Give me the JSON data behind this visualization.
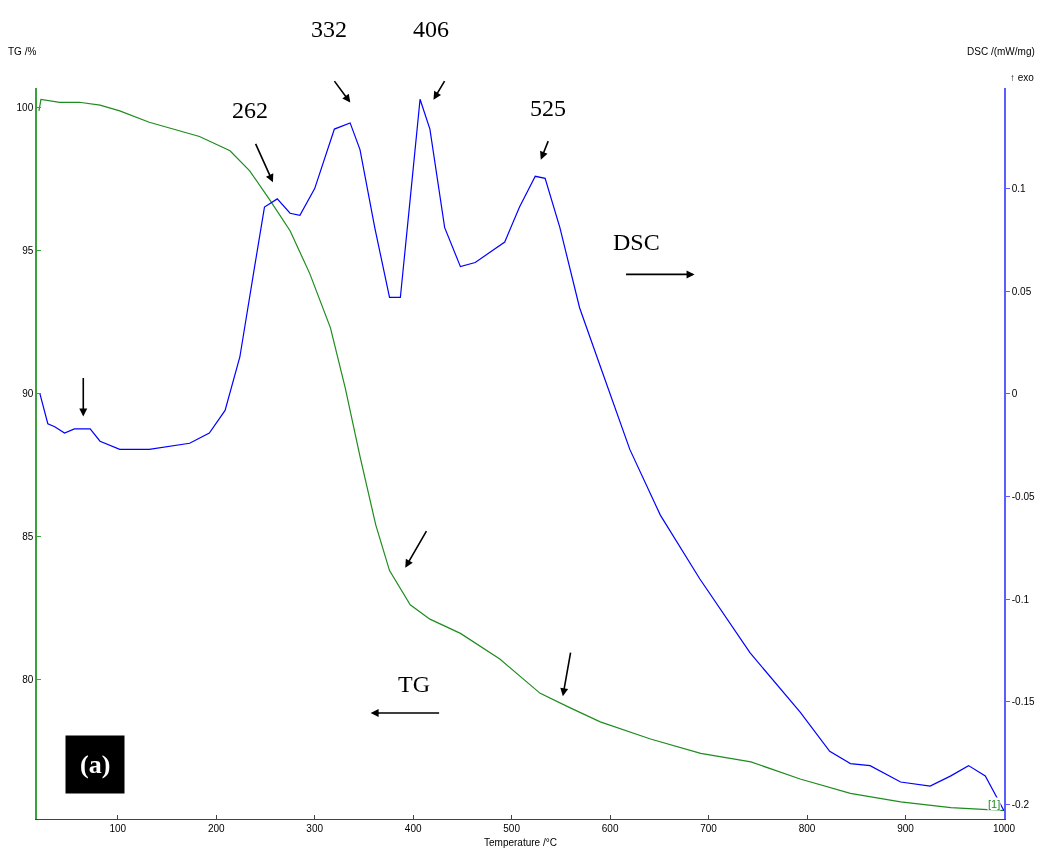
{
  "chart_data": {
    "type": "line",
    "xlabel": "Temperature /°C",
    "ylabel": "TG /%",
    "y2label": "DSC /(mW/mg)",
    "xlim": [
      18,
      1000
    ],
    "xticks": [
      100,
      200,
      300,
      400,
      500,
      600,
      700,
      800,
      900,
      1000
    ],
    "ylim": [
      75.1,
      100.7
    ],
    "yticks": [
      80,
      85,
      90,
      95,
      100
    ],
    "y2lim": [
      -0.207,
      0.149
    ],
    "y2ticks": [
      -0.2,
      -0.15,
      -0.1,
      -0.05,
      0,
      0.05,
      0.1
    ],
    "grid": false,
    "marker": "none",
    "line_style": "solid",
    "series": [
      {
        "color": "#1e8c1e",
        "x": [
          20,
          22,
          41,
          61,
          82,
          102,
          132,
          183,
          214,
          234,
          254,
          275,
          295,
          316,
          331,
          346,
          362,
          376,
          397,
          417,
          448,
          488,
          529,
          559,
          590,
          641,
          692,
          743,
          793,
          844,
          895,
          946,
          997,
          1000
        ],
        "values": [
          99.9,
          100.3,
          100.2,
          100.2,
          100.1,
          99.9,
          99.5,
          99.0,
          98.5,
          97.8,
          96.8,
          95.7,
          94.2,
          92.3,
          90.2,
          87.8,
          85.4,
          83.8,
          82.6,
          82.1,
          81.6,
          80.7,
          79.5,
          79.0,
          78.5,
          77.9,
          77.4,
          77.1,
          76.5,
          76.0,
          75.7,
          75.5,
          75.4,
          75.4
        ]
      },
      {
        "color": "#0000ff",
        "axis": "y2",
        "x": [
          21,
          29,
          36,
          46,
          56,
          72,
          82,
          102,
          132,
          173,
          193,
          209,
          224,
          239,
          249,
          262,
          275,
          285,
          300,
          320,
          336,
          346,
          361,
          376,
          387,
          397,
          407,
          417,
          432,
          448,
          463,
          478,
          493,
          508,
          524,
          534,
          549,
          569,
          590,
          620,
          651,
          691,
          742,
          793,
          823,
          844,
          864,
          895,
          925,
          946,
          964,
          981,
          1000
        ],
        "values": [
          0,
          -0.0145,
          -0.016,
          -0.019,
          -0.017,
          -0.017,
          -0.023,
          -0.027,
          -0.027,
          -0.024,
          -0.019,
          -0.008,
          0.018,
          0.062,
          0.091,
          0.095,
          0.088,
          0.087,
          0.1,
          0.129,
          0.132,
          0.119,
          0.081,
          0.047,
          0.047,
          0.095,
          0.1435,
          0.129,
          0.081,
          0.062,
          0.064,
          0.069,
          0.074,
          0.091,
          0.106,
          0.105,
          0.081,
          0.042,
          0.0135,
          -0.027,
          -0.059,
          -0.09,
          -0.126,
          -0.155,
          -0.174,
          -0.18,
          -0.181,
          -0.189,
          -0.191,
          -0.186,
          -0.181,
          -0.186,
          -0.203
        ]
      }
    ],
    "annotations": [
      "262",
      "332",
      "406",
      "525",
      "DSC",
      "TG",
      "(a)",
      "[1]",
      "↑ exo"
    ]
  }
}
